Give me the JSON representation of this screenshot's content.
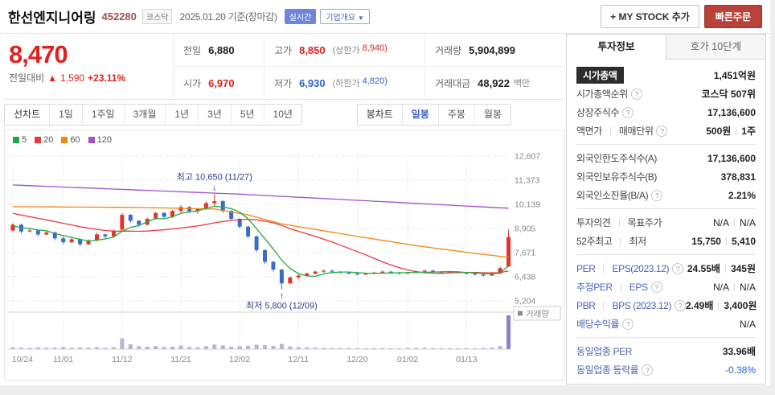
{
  "header": {
    "title": "한선엔지니어링",
    "code": "452280",
    "market_badge": "코스닥",
    "date_text": "2025.01.20 기준(장마감)",
    "realtime_badge": "실시간",
    "overview_badge": "기업개요",
    "overview_arrow": "▼",
    "my_stock_button": "+ MY STOCK 추가",
    "quick_order_button": "빠른주문"
  },
  "price": {
    "current": "8,470",
    "change_label": "전일대비",
    "change_arrow": "▲",
    "change_value": "1,590",
    "change_percent": "+23.11%"
  },
  "summary_table": {
    "cells": [
      {
        "key": "prev-close",
        "label": "전일",
        "value": "6,880",
        "value_color": ""
      },
      {
        "key": "day-high",
        "label": "고가",
        "value": "8,850",
        "value_color": "red",
        "sub_label": "(상한가",
        "sub_value": "8,940)"
      },
      {
        "key": "volume",
        "label": "거래량",
        "value": "5,904,899",
        "value_color": ""
      },
      {
        "key": "day-open",
        "label": "시가",
        "value": "6,970",
        "value_color": "red"
      },
      {
        "key": "day-low",
        "label": "저가",
        "value": "6,930",
        "value_color": "blue",
        "sub_label": "(하한가",
        "sub_value": "4,820)"
      },
      {
        "key": "trade-amount",
        "label": "거래대금",
        "value": "48,922",
        "value_color": "",
        "unit": "백만"
      }
    ]
  },
  "chart_tabs": {
    "left": [
      {
        "key": "line-chart",
        "label": "선차트"
      },
      {
        "key": "period-1d",
        "label": "1일"
      },
      {
        "key": "period-1w",
        "label": "1주일"
      },
      {
        "key": "period-3m",
        "label": "3개월"
      },
      {
        "key": "period-1y",
        "label": "1년"
      },
      {
        "key": "period-3y",
        "label": "3년"
      },
      {
        "key": "period-5y",
        "label": "5년"
      },
      {
        "key": "period-10y",
        "label": "10년"
      }
    ],
    "right": [
      {
        "key": "candle-chart",
        "label": "봉차트"
      },
      {
        "key": "daily",
        "label": "일봉"
      },
      {
        "key": "weekly",
        "label": "주봉"
      },
      {
        "key": "monthly",
        "label": "월봉"
      }
    ],
    "selected_key": "daily"
  },
  "legend": [
    {
      "key": "ma5",
      "label": "5"
    },
    {
      "key": "ma20",
      "label": "20"
    },
    {
      "key": "ma60",
      "label": "60"
    },
    {
      "key": "ma120",
      "label": "120"
    }
  ],
  "chart_data": {
    "type": "candlestick",
    "title": "한선엔지니어링 일봉 차트",
    "ylim": [
      5204,
      12607
    ],
    "y_ticks": [
      12607,
      11373,
      10139,
      8905,
      7671,
      6438,
      5204
    ],
    "y_tick_labels": [
      "12,607",
      "11,373",
      "10,139",
      "8,905",
      "7,671",
      "6,438",
      "5,204"
    ],
    "x_tick_labels": [
      "10/24",
      "11/01",
      "11/12",
      "11/21",
      "12/02",
      "12/11",
      "12/20",
      "01/02",
      "01/13"
    ],
    "x_tick_indices": [
      0,
      6,
      13,
      20,
      27,
      34,
      41,
      47,
      54
    ],
    "dates": [
      "10/24",
      "10/25",
      "10/28",
      "10/29",
      "10/30",
      "10/31",
      "11/01",
      "11/04",
      "11/05",
      "11/06",
      "11/07",
      "11/08",
      "11/11",
      "11/12",
      "11/13",
      "11/14",
      "11/15",
      "11/18",
      "11/19",
      "11/20",
      "11/21",
      "11/22",
      "11/25",
      "11/26",
      "11/27",
      "11/28",
      "11/29",
      "12/02",
      "12/03",
      "12/04",
      "12/05",
      "12/06",
      "12/09",
      "12/10",
      "12/11",
      "12/12",
      "12/13",
      "12/16",
      "12/17",
      "12/18",
      "12/19",
      "12/20",
      "12/23",
      "12/24",
      "12/26",
      "12/27",
      "12/30",
      "01/02",
      "01/03",
      "01/06",
      "01/07",
      "01/08",
      "01/09",
      "01/10",
      "01/13",
      "01/14",
      "01/15",
      "01/16",
      "01/17",
      "01/20"
    ],
    "candles": [
      [
        8800,
        9180,
        8750,
        9100
      ],
      [
        9100,
        9150,
        8650,
        8750
      ],
      [
        8750,
        8950,
        8700,
        8800
      ],
      [
        8800,
        8850,
        8500,
        8600
      ],
      [
        8600,
        8780,
        8550,
        8700
      ],
      [
        8700,
        8750,
        8300,
        8400
      ],
      [
        8400,
        8500,
        8100,
        8200
      ],
      [
        8200,
        8450,
        8150,
        8350
      ],
      [
        8350,
        8400,
        8000,
        8100
      ],
      [
        8100,
        8350,
        8050,
        8300
      ],
      [
        8300,
        8700,
        8250,
        8600
      ],
      [
        8600,
        8650,
        8400,
        8500
      ],
      [
        8500,
        8850,
        8450,
        8800
      ],
      [
        8850,
        9700,
        8800,
        9600
      ],
      [
        9600,
        9650,
        9200,
        9300
      ],
      [
        9300,
        9350,
        9000,
        9100
      ],
      [
        9100,
        9450,
        9050,
        9400
      ],
      [
        9400,
        9750,
        9350,
        9700
      ],
      [
        9700,
        9750,
        9400,
        9500
      ],
      [
        9500,
        9850,
        9450,
        9800
      ],
      [
        9800,
        10100,
        9700,
        10000
      ],
      [
        10000,
        10050,
        9700,
        9800
      ],
      [
        9800,
        9950,
        9650,
        9900
      ],
      [
        9900,
        10300,
        9850,
        10200
      ],
      [
        10200,
        10650,
        10050,
        10300
      ],
      [
        10300,
        10350,
        9700,
        9800
      ],
      [
        9800,
        9850,
        9300,
        9400
      ],
      [
        9400,
        9450,
        8900,
        9000
      ],
      [
        9000,
        9050,
        8400,
        8500
      ],
      [
        8500,
        8550,
        7700,
        7800
      ],
      [
        7800,
        7850,
        7100,
        7200
      ],
      [
        7200,
        7250,
        6700,
        6800
      ],
      [
        6800,
        6850,
        5800,
        6100
      ],
      [
        6100,
        6450,
        6050,
        6400
      ],
      [
        6400,
        6550,
        6300,
        6500
      ],
      [
        6500,
        6650,
        6450,
        6600
      ],
      [
        6600,
        6750,
        6550,
        6700
      ],
      [
        6700,
        6800,
        6650,
        6750
      ],
      [
        6750,
        6780,
        6650,
        6700
      ],
      [
        6700,
        6720,
        6600,
        6650
      ],
      [
        6650,
        6700,
        6550,
        6600
      ],
      [
        6600,
        6650,
        6500,
        6550
      ],
      [
        6550,
        6650,
        6520,
        6600
      ],
      [
        6600,
        6700,
        6570,
        6650
      ],
      [
        6650,
        6750,
        6620,
        6700
      ],
      [
        6700,
        6720,
        6600,
        6650
      ],
      [
        6650,
        6680,
        6550,
        6600
      ],
      [
        6600,
        6700,
        6570,
        6650
      ],
      [
        6650,
        6750,
        6620,
        6700
      ],
      [
        6700,
        6800,
        6670,
        6750
      ],
      [
        6750,
        6780,
        6650,
        6700
      ],
      [
        6700,
        6730,
        6600,
        6650
      ],
      [
        6650,
        6750,
        6620,
        6700
      ],
      [
        6700,
        6720,
        6600,
        6650
      ],
      [
        6650,
        6680,
        6550,
        6600
      ],
      [
        6600,
        6630,
        6500,
        6550
      ],
      [
        6550,
        6600,
        6450,
        6500
      ],
      [
        6500,
        6680,
        6480,
        6600
      ],
      [
        6600,
        6950,
        6580,
        6880
      ],
      [
        6970,
        8850,
        6930,
        8470
      ]
    ],
    "volumes_k": [
      300,
      250,
      220,
      280,
      240,
      260,
      350,
      230,
      260,
      240,
      310,
      220,
      330,
      1900,
      850,
      520,
      430,
      560,
      380,
      450,
      620,
      380,
      300,
      520,
      800,
      650,
      430,
      520,
      600,
      780,
      690,
      560,
      920,
      480,
      360,
      280,
      240,
      200,
      180,
      160,
      170,
      150,
      140,
      160,
      180,
      150,
      140,
      190,
      210,
      230,
      170,
      150,
      180,
      140,
      160,
      150,
      190,
      260,
      540,
      5905
    ],
    "pre_closes": [
      10500,
      10450,
      10400,
      10300,
      10250,
      10150,
      10050,
      10000,
      9900,
      9850,
      9750,
      9650,
      9550,
      9450,
      9350,
      9250,
      9150,
      9050,
      8950,
      8900
    ],
    "ma60_points": [
      [
        0,
        10020
      ],
      [
        15,
        9980
      ],
      [
        24,
        9900
      ],
      [
        28,
        9600
      ],
      [
        32,
        9140
      ],
      [
        41,
        8500
      ],
      [
        48,
        8030
      ],
      [
        55,
        7630
      ],
      [
        59,
        7430
      ]
    ],
    "ma120_points": [
      [
        0,
        11130
      ],
      [
        27,
        10660
      ],
      [
        59,
        9940
      ]
    ],
    "annotations": {
      "high": {
        "text": "최고 10,650 (11/27)",
        "index": 24,
        "price": 10650,
        "arrow": "↓"
      },
      "low": {
        "text": "최저 5,800 (12/09)",
        "index": 32,
        "price": 5800,
        "arrow": "↑"
      }
    },
    "volume_label": "거래량",
    "colors": {
      "up": "#e1342f",
      "down": "#3b6bce",
      "ma5": "#1eac42",
      "ma20": "#e8393d",
      "ma60": "#f0870f",
      "ma120": "#a050c8",
      "volume": "#b9b3d4",
      "volume_last": "#8f7fc9",
      "annotation": "#2c3e8f"
    }
  },
  "investor_panel": {
    "tabs": [
      "투자정보",
      "호가 10단계"
    ],
    "active_tab": "투자정보",
    "rows": [
      {
        "key": "market-cap",
        "label": "시가총액",
        "dark": true,
        "value": "1,451억원",
        "value_bold": true
      },
      {
        "key": "market-cap-rank",
        "label": "시가총액순위",
        "help": true,
        "value": "코스닥 507위",
        "value_bold": true
      },
      {
        "key": "shares-outstanding",
        "label": "상장주식수",
        "help": true,
        "value": "17,136,600",
        "value_bold": true
      },
      {
        "key": "par-value-unit",
        "label": "액면가",
        "label2": "매매단위",
        "help": true,
        "value": "500원",
        "value2": "1주",
        "value_bold": true,
        "divider_after": true
      },
      {
        "key": "foreign-limit-shares",
        "label": "외국인한도주식수(A)",
        "value": "17,136,600",
        "value_bold": true
      },
      {
        "key": "foreign-held-shares",
        "label": "외국인보유주식수(B)",
        "value": "378,831",
        "value_bold": true
      },
      {
        "key": "foreign-ownership-ratio",
        "label": "외국인소진율(B/A)",
        "help": true,
        "value": "2.21%",
        "value_bold": true,
        "divider_after": true
      },
      {
        "key": "opinion-target",
        "label": "투자의견",
        "label2": "목표주가",
        "value": "N/A",
        "value2": "N/A"
      },
      {
        "key": "week52-high-low",
        "label": "52주최고",
        "label2": "최저",
        "value": "15,750",
        "value2": "5,410",
        "value_bold": true,
        "divider_after": true
      },
      {
        "key": "per-eps",
        "label": "PER",
        "label2": "EPS(2023.12)",
        "help": true,
        "link": true,
        "value": "24.55배",
        "value2": "345원",
        "value_bold": true
      },
      {
        "key": "est-per-eps",
        "label": "추정PER",
        "label2": "EPS",
        "help": true,
        "link": true,
        "value": "N/A",
        "value2": "N/A"
      },
      {
        "key": "pbr-bps",
        "label": "PBR",
        "label2": "BPS (2023.12)",
        "help": true,
        "link": true,
        "value": "2.49배",
        "value2": "3,400원",
        "value_bold": true
      },
      {
        "key": "dividend-yield",
        "label": "배당수익률",
        "help": true,
        "link": true,
        "value": "N/A",
        "divider_after": true
      },
      {
        "key": "industry-per",
        "label": "동일업종 PER",
        "link": true,
        "value": "33.96배",
        "value_bold": true
      },
      {
        "key": "industry-change",
        "label": "동일업종 등락률",
        "help": true,
        "link": true,
        "value": "-0.38%",
        "value_class": "minus"
      }
    ]
  }
}
